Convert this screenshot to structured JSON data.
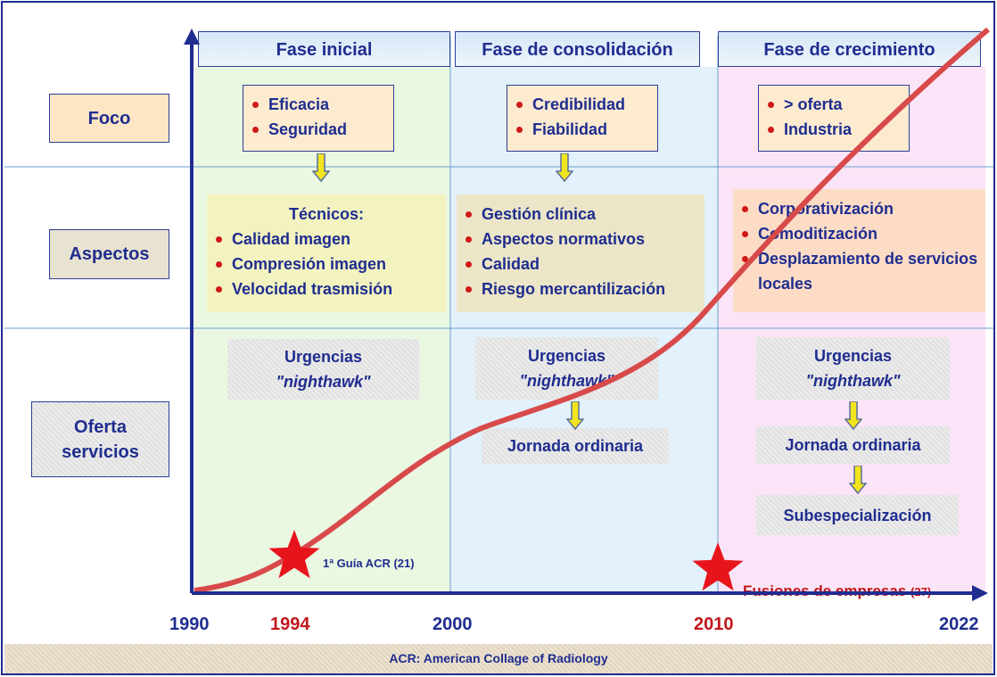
{
  "rows": [
    [
      "Foco"
    ],
    [
      "Aspectos"
    ],
    [
      "Oferta",
      "servicios"
    ]
  ],
  "phases": [
    {
      "title": "Fase inicial",
      "focus": [
        "Eficacia",
        "Seguridad"
      ],
      "aspects_title": "Técnicos:",
      "aspects": [
        "Calidad imagen",
        "Compresión imagen",
        "Velocidad trasmisión"
      ],
      "offer": [
        {
          "title": "Urgencias",
          "note": "\"nighthawk\""
        }
      ]
    },
    {
      "title": "Fase de consolidación",
      "focus": [
        "Credibilidad",
        "Fiabilidad"
      ],
      "aspects": [
        "Gestión clínica",
        "Aspectos normativos",
        "Calidad",
        "Riesgo mercantilización"
      ],
      "offer": [
        {
          "title": "Urgencias",
          "note": "\"nighthawk\""
        },
        {
          "title": "Jornada ordinaria"
        }
      ]
    },
    {
      "title": "Fase de crecimiento",
      "focus": [
        "> oferta",
        "Industria"
      ],
      "aspects": [
        "Corporativización",
        "Comoditización",
        "Desplazamiento de servicios locales"
      ],
      "offer": [
        {
          "title": "Urgencias",
          "note": "\"nighthawk\""
        },
        {
          "title": "Jornada ordinaria"
        },
        {
          "title": "Subespecialización"
        }
      ]
    }
  ],
  "years": [
    "1990",
    "1994",
    "2000",
    "2010",
    "2022"
  ],
  "events": [
    {
      "label": "1ª Guía ACR (21)"
    },
    {
      "label": "Fusiones de empresas",
      "ref": "(27)"
    }
  ],
  "footer": "ACR: American Collage of Radiology"
}
